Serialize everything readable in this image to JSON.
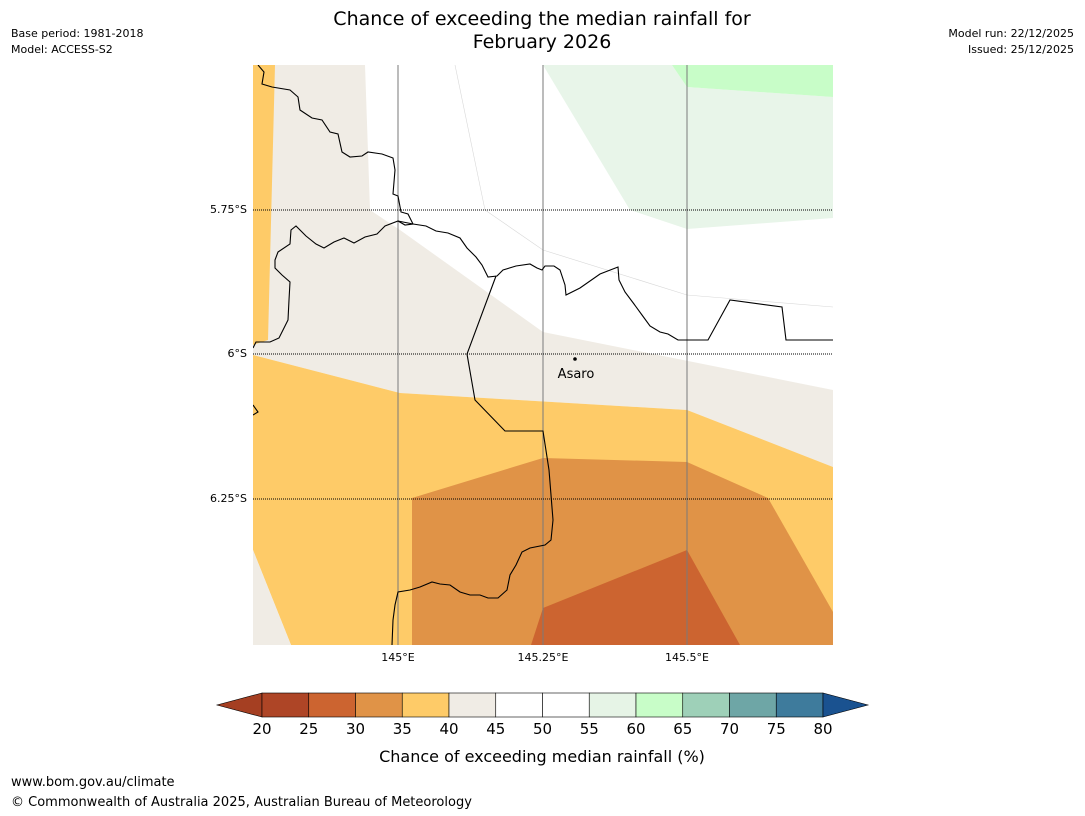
{
  "header": {
    "base_period": "Base period: 1981-2018",
    "model": "Model: ACCESS-S2",
    "model_run": "Model run: 22/12/2025",
    "issued": "Issued: 25/12/2025",
    "title_line1": "Chance of exceeding the median rainfall for",
    "title_line2": "February 2026"
  },
  "map": {
    "lat_labels": [
      "5.75°S",
      "6°S",
      "6.25°S"
    ],
    "lon_labels": [
      "145°E",
      "145.25°E",
      "145.5°E"
    ],
    "town": {
      "name": "Asaro",
      "lat": -5.995,
      "lon": 145.3
    },
    "region_values": {
      "west_edge_band": "35-40",
      "north_central": "40-45",
      "north_wedge": "50-55",
      "northeast": "55-60",
      "northeast_corner": "60-65",
      "south_band": "35-40",
      "south_core": "30-35",
      "southeast_core": "25-30"
    }
  },
  "legend": {
    "ticks": [
      "20",
      "25",
      "30",
      "35",
      "40",
      "45",
      "50",
      "55",
      "60",
      "65",
      "70",
      "75",
      "80"
    ],
    "label": "Chance of exceeding median rainfall (%)",
    "colors": [
      "#a53f22",
      "#ae4526",
      "#cc6430",
      "#e09347",
      "#fecb68",
      "#f0ece5",
      "#ffffff",
      "#ffffff",
      "#e6f4e6",
      "#c8fdc8",
      "#9ed0b8",
      "#6ea6a6",
      "#3e7b9c",
      "#1a5290"
    ]
  },
  "footer": {
    "url": "www.bom.gov.au/climate",
    "copyright": "© Commonwealth of Australia 2025, Australian Bureau of Meteorology"
  }
}
